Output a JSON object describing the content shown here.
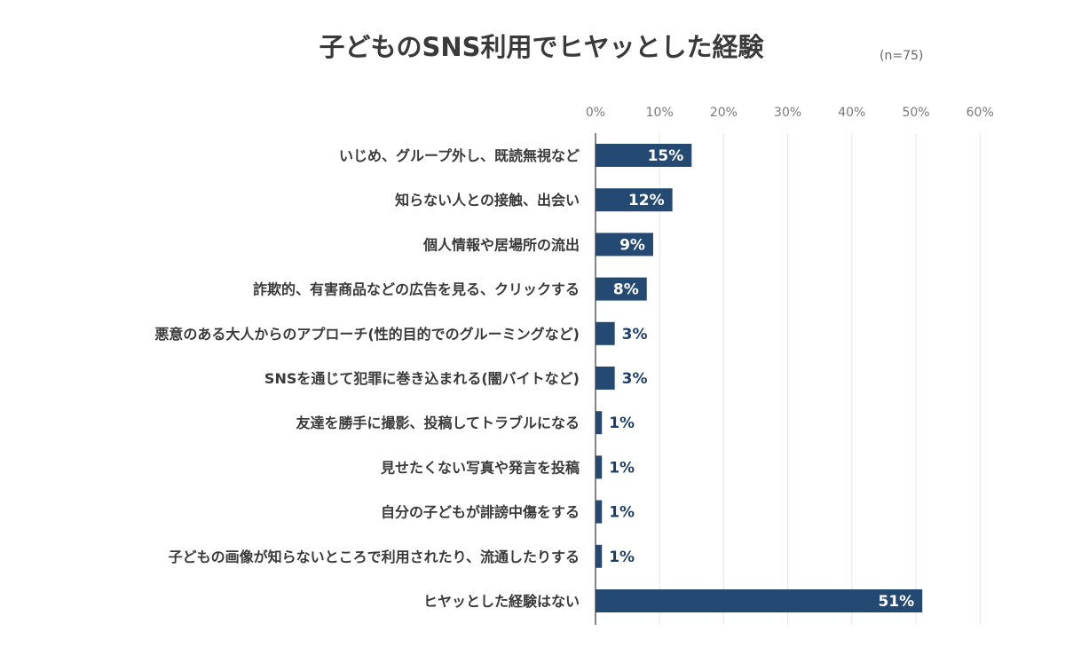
{
  "chart_data": {
    "type": "bar",
    "orientation": "horizontal",
    "title": "子どものSNS利用でヒヤッとした経験",
    "note": "(n=75)",
    "categories": [
      "いじめ、グループ外し、既読無視など",
      "知らない人との接触、出会い",
      "個人情報や居場所の流出",
      "詐欺的、有害商品などの広告を見る、クリックする",
      "悪意のある大人からのアプローチ(性的目的でのグルーミングなど)",
      "SNSを通じて犯罪に巻き込まれる(闇バイトなど)",
      "友達を勝手に撮影、投稿してトラブルになる",
      "見せたくない写真や発言を投稿",
      "自分の子どもが誹謗中傷をする",
      "子どもの画像が知らないところで利用されたり、流通したりする",
      "ヒヤッとした経験はない"
    ],
    "values": [
      15,
      12,
      9,
      8,
      3,
      3,
      1,
      1,
      1,
      1,
      51
    ],
    "value_labels": [
      "15%",
      "12%",
      "9%",
      "8%",
      "3%",
      "3%",
      "1%",
      "1%",
      "1%",
      "1%",
      "51%"
    ],
    "xlim": [
      0,
      60
    ],
    "x_ticks": [
      "0%",
      "10%",
      "20%",
      "30%",
      "40%",
      "50%",
      "60%"
    ],
    "x_tick_values": [
      0,
      10,
      20,
      30,
      40,
      50,
      60
    ],
    "axis_position": "top",
    "grid": true,
    "bar_color": "#244a74",
    "label_inside_color": "#ffffff",
    "label_outside_color": "#1f3f66",
    "title_color": "#3a3a3a"
  }
}
